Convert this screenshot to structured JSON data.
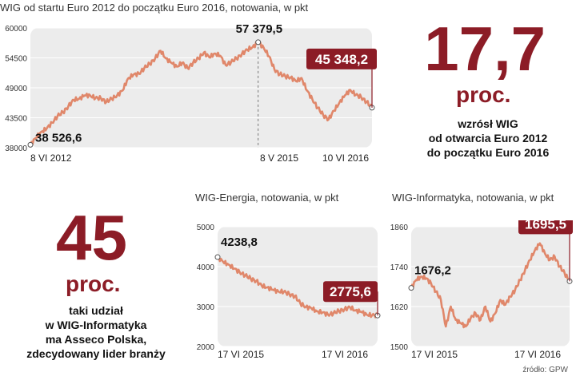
{
  "charts": [
    {
      "title": "WIG od startu Euro 2012 do początku Euro 2016, notowania, w pkt",
      "chart_data": {
        "type": "line",
        "yticks": [
          "60000",
          "54500",
          "49000",
          "43500",
          "38000"
        ],
        "ytick_values": [
          60000,
          54500,
          49000,
          43500,
          38000
        ],
        "ylim": [
          38000,
          60000
        ],
        "x_labels": [
          "8 VI 2012",
          "8 V 2015",
          "10 VI 2016"
        ],
        "series": [
          {
            "values": [
              38527,
              39800,
              40900,
              41500,
              42600,
              43800,
              44500,
              45600,
              46800,
              47000,
              47600,
              47600,
              47100,
              47100,
              46400,
              47000,
              47600,
              48500,
              50700,
              51400,
              51600,
              52600,
              53400,
              54400,
              55800,
              54400,
              53600,
              52900,
              53600,
              52600,
              53600,
              54400,
              55500,
              54600,
              55300,
              54900,
              53200,
              53700,
              54400,
              55200,
              56000,
              56500,
              57380,
              56400,
              54800,
              52400,
              51500,
              51100,
              50900,
              50200,
              50800,
              48500,
              46900,
              45300,
              44000,
              43200,
              44800,
              46300,
              47600,
              48600,
              47700,
              47300,
              46400,
              45348
            ]
          }
        ],
        "annotations": [
          "38 526,6",
          "57 379,5",
          "45 348,2"
        ]
      }
    },
    {
      "title": "WIG-Energia, notowania, w pkt",
      "chart_data": {
        "type": "line",
        "yticks": [
          "5000",
          "4000",
          "3000",
          "2000"
        ],
        "ytick_values": [
          5000,
          4000,
          3000,
          2000
        ],
        "ylim": [
          2000,
          5000
        ],
        "x_labels": [
          "17 VI 2015",
          "17 VI 2016"
        ],
        "series": [
          {
            "values": [
              4239,
              4120,
              4050,
              3950,
              3860,
              3780,
              3700,
              3640,
              3520,
              3480,
              3420,
              3380,
              3370,
              3310,
              3260,
              3080,
              2990,
              2960,
              2880,
              2850,
              2800,
              2830,
              2890,
              2930,
              2980,
              2900,
              2870,
              2800,
              2780,
              2776
            ]
          }
        ],
        "annotations": [
          "4238,8",
          "2775,6"
        ]
      }
    },
    {
      "title": "WIG-Informatyka, notowania, w pkt",
      "chart_data": {
        "type": "line",
        "yticks": [
          "1860",
          "1740",
          "1620",
          "1500"
        ],
        "ytick_values": [
          1860,
          1740,
          1620,
          1500
        ],
        "ylim": [
          1500,
          1860
        ],
        "x_labels": [
          "17 VI 2015",
          "17 VI 2016"
        ],
        "series": [
          {
            "values": [
              1676,
              1700,
              1710,
              1705,
              1690,
              1665,
              1640,
              1560,
              1620,
              1580,
              1570,
              1560,
              1585,
              1600,
              1580,
              1620,
              1575,
              1600,
              1640,
              1625,
              1650,
              1670,
              1700,
              1730,
              1760,
              1790,
              1810,
              1780,
              1760,
              1770,
              1740,
              1720,
              1696
            ]
          }
        ],
        "annotations": [
          "1676,2",
          "1695,5"
        ]
      }
    }
  ],
  "stat1": {
    "value": "17,7",
    "unit": "proc.",
    "desc": [
      "wzrósł WIG",
      "od otwarcia Euro 2012",
      "do początku Euro 2016"
    ]
  },
  "stat2": {
    "value": "45",
    "unit": "proc.",
    "desc": [
      "taki udział",
      "w WIG-Informatyka",
      "ma Asseco Polska,",
      "zdecydowany lider branży"
    ]
  },
  "source": "źródło: GPW",
  "colors": {
    "line": "#e0876a",
    "accent": "#8c1c26",
    "plot_bg": "#ececec"
  }
}
